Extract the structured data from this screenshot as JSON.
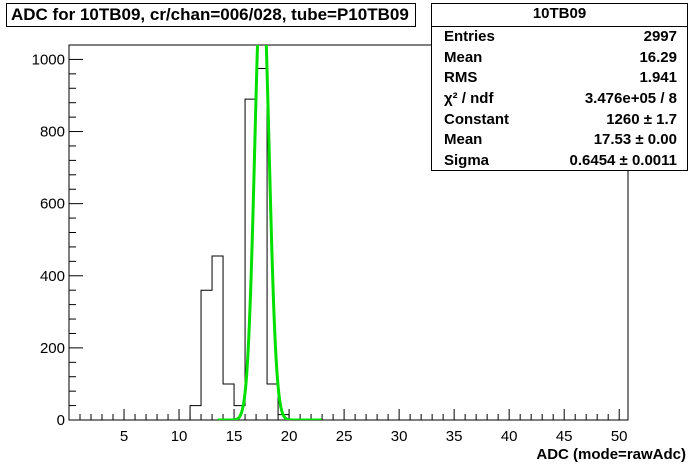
{
  "title": "ADC for 10TB09,  cr/chan=006/028,  tube=P10TB09",
  "stats": {
    "name": "10TB09",
    "rows": [
      {
        "key": "Entries",
        "value": "2997"
      },
      {
        "key": "Mean",
        "value": "16.29"
      },
      {
        "key": "RMS",
        "value": "1.941"
      },
      {
        "key": "χ² / ndf",
        "value": "3.476e+05 / 8"
      },
      {
        "key": "Constant",
        "value": "1260 ± 1.7"
      },
      {
        "key": "Mean",
        "value": "17.53 ± 0.00"
      },
      {
        "key": "Sigma",
        "value": "0.6454 ± 0.0011"
      }
    ]
  },
  "chart_data": {
    "type": "bar",
    "xlabel": "ADC (mode=rawAdc)",
    "ylabel": "",
    "xlim": [
      0,
      50.8
    ],
    "ylim": [
      0,
      1040
    ],
    "xticks": [
      5,
      10,
      15,
      20,
      25,
      30,
      35,
      40,
      45,
      50
    ],
    "yticks": [
      0,
      200,
      400,
      600,
      800,
      1000
    ],
    "histogram": {
      "bin_edges": [
        11,
        12,
        13,
        14,
        15,
        16,
        17,
        18,
        19,
        20
      ],
      "values": [
        40,
        360,
        455,
        100,
        40,
        890,
        975,
        100,
        15
      ]
    },
    "fit": {
      "name": "gaus",
      "constant": 1260,
      "mean": 17.53,
      "sigma": 0.6454,
      "color": "#00e000"
    },
    "line_color": "#000000"
  }
}
